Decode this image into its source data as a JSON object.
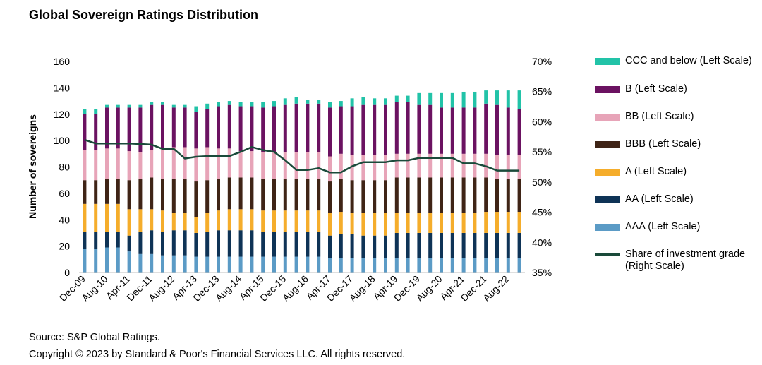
{
  "title": "Global Sovereign Ratings Distribution",
  "source": "Source: S&P Global Ratings.",
  "copyright": "Copyright © 2023 by Standard & Poor's Financial Services LLC. All rights reserved.",
  "colors": {
    "AAA": "#5b9bc6",
    "AA": "#0e3356",
    "A": "#f5ad2b",
    "BBB": "#3f2416",
    "BB": "#e7a4b8",
    "B": "#6b1261",
    "CCC": "#22c3a8",
    "line": "#1a4a3a"
  },
  "chart_data": {
    "type": "bar",
    "stacked": true,
    "ylabel": "Number of sovereigns",
    "ylim": [
      0,
      160
    ],
    "yticks": [
      "0",
      "20",
      "40",
      "60",
      "80",
      "100",
      "120",
      "140",
      "160"
    ],
    "y2lim": [
      35,
      70
    ],
    "y2ticks": [
      "35%",
      "40%",
      "45%",
      "50%",
      "55%",
      "60%",
      "65%",
      "70%"
    ],
    "x_tick_labels": [
      "Dec-09",
      "Aug-10",
      "Apr-11",
      "Dec-11",
      "Aug-12",
      "Apr-13",
      "Dec-13",
      "Aug-14",
      "Apr-15",
      "Dec-15",
      "Aug-16",
      "Apr-17",
      "Dec-17",
      "Aug-18",
      "Apr-19",
      "Dec-19",
      "Aug-20",
      "Apr-21",
      "Dec-21",
      "Aug-22"
    ],
    "categories": [
      "Dec-09",
      "Apr-10",
      "Aug-10",
      "Dec-10",
      "Apr-11",
      "Aug-11",
      "Dec-11",
      "Apr-12",
      "Aug-12",
      "Dec-12",
      "Apr-13",
      "Aug-13",
      "Dec-13",
      "Apr-14",
      "Aug-14",
      "Dec-14",
      "Apr-15",
      "Aug-15",
      "Dec-15",
      "Apr-16",
      "Aug-16",
      "Dec-16",
      "Apr-17",
      "Aug-17",
      "Dec-17",
      "Apr-18",
      "Aug-18",
      "Dec-18",
      "Apr-19",
      "Aug-19",
      "Dec-19",
      "Apr-20",
      "Aug-20",
      "Dec-20",
      "Apr-21",
      "Aug-21",
      "Dec-21",
      "Apr-22",
      "Aug-22",
      "Dec-22"
    ],
    "series": [
      {
        "name": "AAA (Left Scale)",
        "key": "AAA",
        "values": [
          18,
          18,
          19,
          19,
          16,
          14,
          14,
          13,
          13,
          13,
          12,
          12,
          12,
          12,
          12,
          12,
          12,
          12,
          12,
          12,
          12,
          12,
          11,
          11,
          11,
          11,
          11,
          11,
          11,
          11,
          11,
          11,
          11,
          11,
          11,
          11,
          11,
          11,
          11,
          11
        ]
      },
      {
        "name": "AA (Left Scale)",
        "key": "AA",
        "values": [
          13,
          13,
          12,
          12,
          12,
          17,
          18,
          18,
          19,
          19,
          18,
          19,
          20,
          20,
          20,
          20,
          19,
          19,
          19,
          19,
          19,
          19,
          17,
          18,
          18,
          17,
          17,
          17,
          19,
          19,
          19,
          19,
          19,
          19,
          19,
          19,
          19,
          19,
          19,
          19
        ]
      },
      {
        "name": "A (Left Scale)",
        "key": "A",
        "values": [
          21,
          21,
          21,
          21,
          20,
          17,
          16,
          16,
          13,
          13,
          12,
          14,
          15,
          16,
          16,
          16,
          16,
          16,
          16,
          16,
          16,
          16,
          17,
          17,
          16,
          17,
          17,
          17,
          15,
          15,
          15,
          15,
          15,
          15,
          15,
          15,
          16,
          16,
          16,
          16
        ]
      },
      {
        "name": "BBB (Left Scale)",
        "key": "BBB",
        "values": [
          18,
          18,
          19,
          19,
          22,
          23,
          24,
          24,
          26,
          26,
          27,
          25,
          24,
          24,
          24,
          24,
          24,
          24,
          24,
          24,
          24,
          24,
          24,
          25,
          25,
          25,
          25,
          25,
          27,
          27,
          27,
          27,
          27,
          27,
          27,
          27,
          26,
          25,
          25,
          25
        ]
      },
      {
        "name": "BB (Left Scale)",
        "key": "BB",
        "values": [
          23,
          23,
          23,
          23,
          22,
          20,
          21,
          23,
          24,
          24,
          25,
          25,
          23,
          22,
          20,
          20,
          20,
          20,
          20,
          20,
          20,
          20,
          19,
          19,
          19,
          19,
          19,
          19,
          18,
          18,
          18,
          18,
          18,
          18,
          18,
          18,
          18,
          18,
          18,
          18
        ]
      },
      {
        "name": "B (Left Scale)",
        "key": "B",
        "values": [
          27,
          27,
          31,
          31,
          33,
          34,
          34,
          33,
          30,
          30,
          28,
          29,
          32,
          33,
          34,
          34,
          34,
          35,
          36,
          37,
          37,
          37,
          37,
          36,
          37,
          38,
          38,
          38,
          39,
          39,
          37,
          37,
          35,
          35,
          35,
          35,
          38,
          38,
          36,
          35
        ]
      },
      {
        "name": "CCC and below (Left Scale)",
        "key": "CCC",
        "values": [
          4,
          4,
          2,
          2,
          2,
          2,
          2,
          2,
          2,
          2,
          4,
          4,
          3,
          3,
          3,
          3,
          4,
          4,
          5,
          5,
          3,
          3,
          4,
          4,
          6,
          6,
          5,
          5,
          5,
          5,
          9,
          9,
          11,
          11,
          12,
          12,
          10,
          11,
          13,
          14
        ]
      }
    ],
    "line_series": {
      "name": "Share of investment grade (Right Scale)",
      "axis": "right",
      "values": [
        57,
        56.4,
        56.4,
        56.4,
        56.4,
        56.3,
        56.2,
        55.5,
        55.5,
        53.9,
        54.2,
        54.3,
        54.3,
        54.3,
        55.0,
        55.8,
        55.3,
        55.0,
        53.6,
        52.0,
        52.0,
        52.3,
        51.6,
        51.6,
        52.6,
        53.3,
        53.3,
        53.3,
        53.6,
        53.6,
        54.0,
        54.0,
        54.0,
        54.0,
        53.1,
        53.1,
        52.6,
        51.9,
        51.9,
        51.9
      ]
    }
  },
  "legend": [
    {
      "key": "CCC",
      "label": "CCC and below (Left Scale)"
    },
    {
      "key": "B",
      "label": "B (Left Scale)"
    },
    {
      "key": "BB",
      "label": "BB (Left Scale)"
    },
    {
      "key": "BBB",
      "label": "BBB (Left Scale)"
    },
    {
      "key": "A",
      "label": "A (Left Scale)"
    },
    {
      "key": "AA",
      "label": "AA (Left Scale)"
    },
    {
      "key": "AAA",
      "label": "AAA (Left Scale)"
    },
    {
      "key": "line",
      "label": "Share of investment grade (Right Scale)"
    }
  ]
}
